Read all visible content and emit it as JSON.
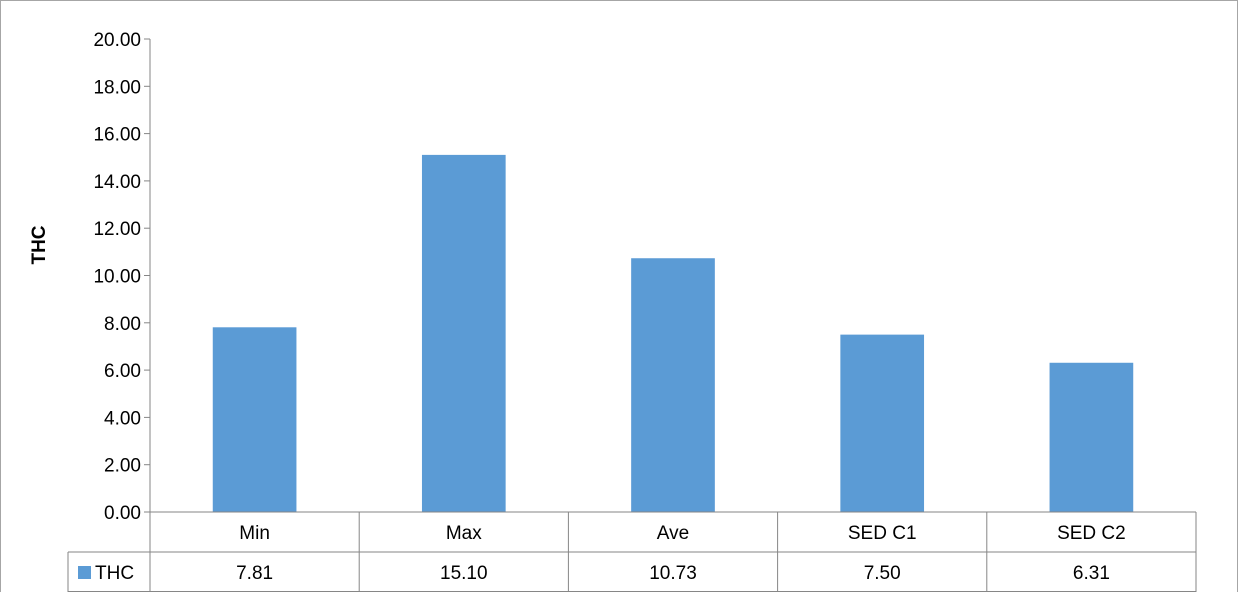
{
  "chart_data": {
    "type": "bar",
    "categories": [
      "Min",
      "Max",
      "Ave",
      "SED C1",
      "SED C2"
    ],
    "series": [
      {
        "name": "THC",
        "values": [
          7.81,
          15.1,
          10.73,
          7.5,
          6.31
        ],
        "color": "#5B9BD5"
      }
    ],
    "value_labels": [
      "7.81",
      "15.10",
      "10.73",
      "7.50",
      "6.31"
    ],
    "title": "",
    "xlabel": "",
    "ylabel": "THC",
    "ylim": [
      0,
      20
    ],
    "yticks": [
      "0.00",
      "2.00",
      "4.00",
      "6.00",
      "8.00",
      "10.00",
      "12.00",
      "14.00",
      "16.00",
      "18.00",
      "20.00"
    ],
    "grid": false,
    "legend": "data-table",
    "data_table": true
  }
}
